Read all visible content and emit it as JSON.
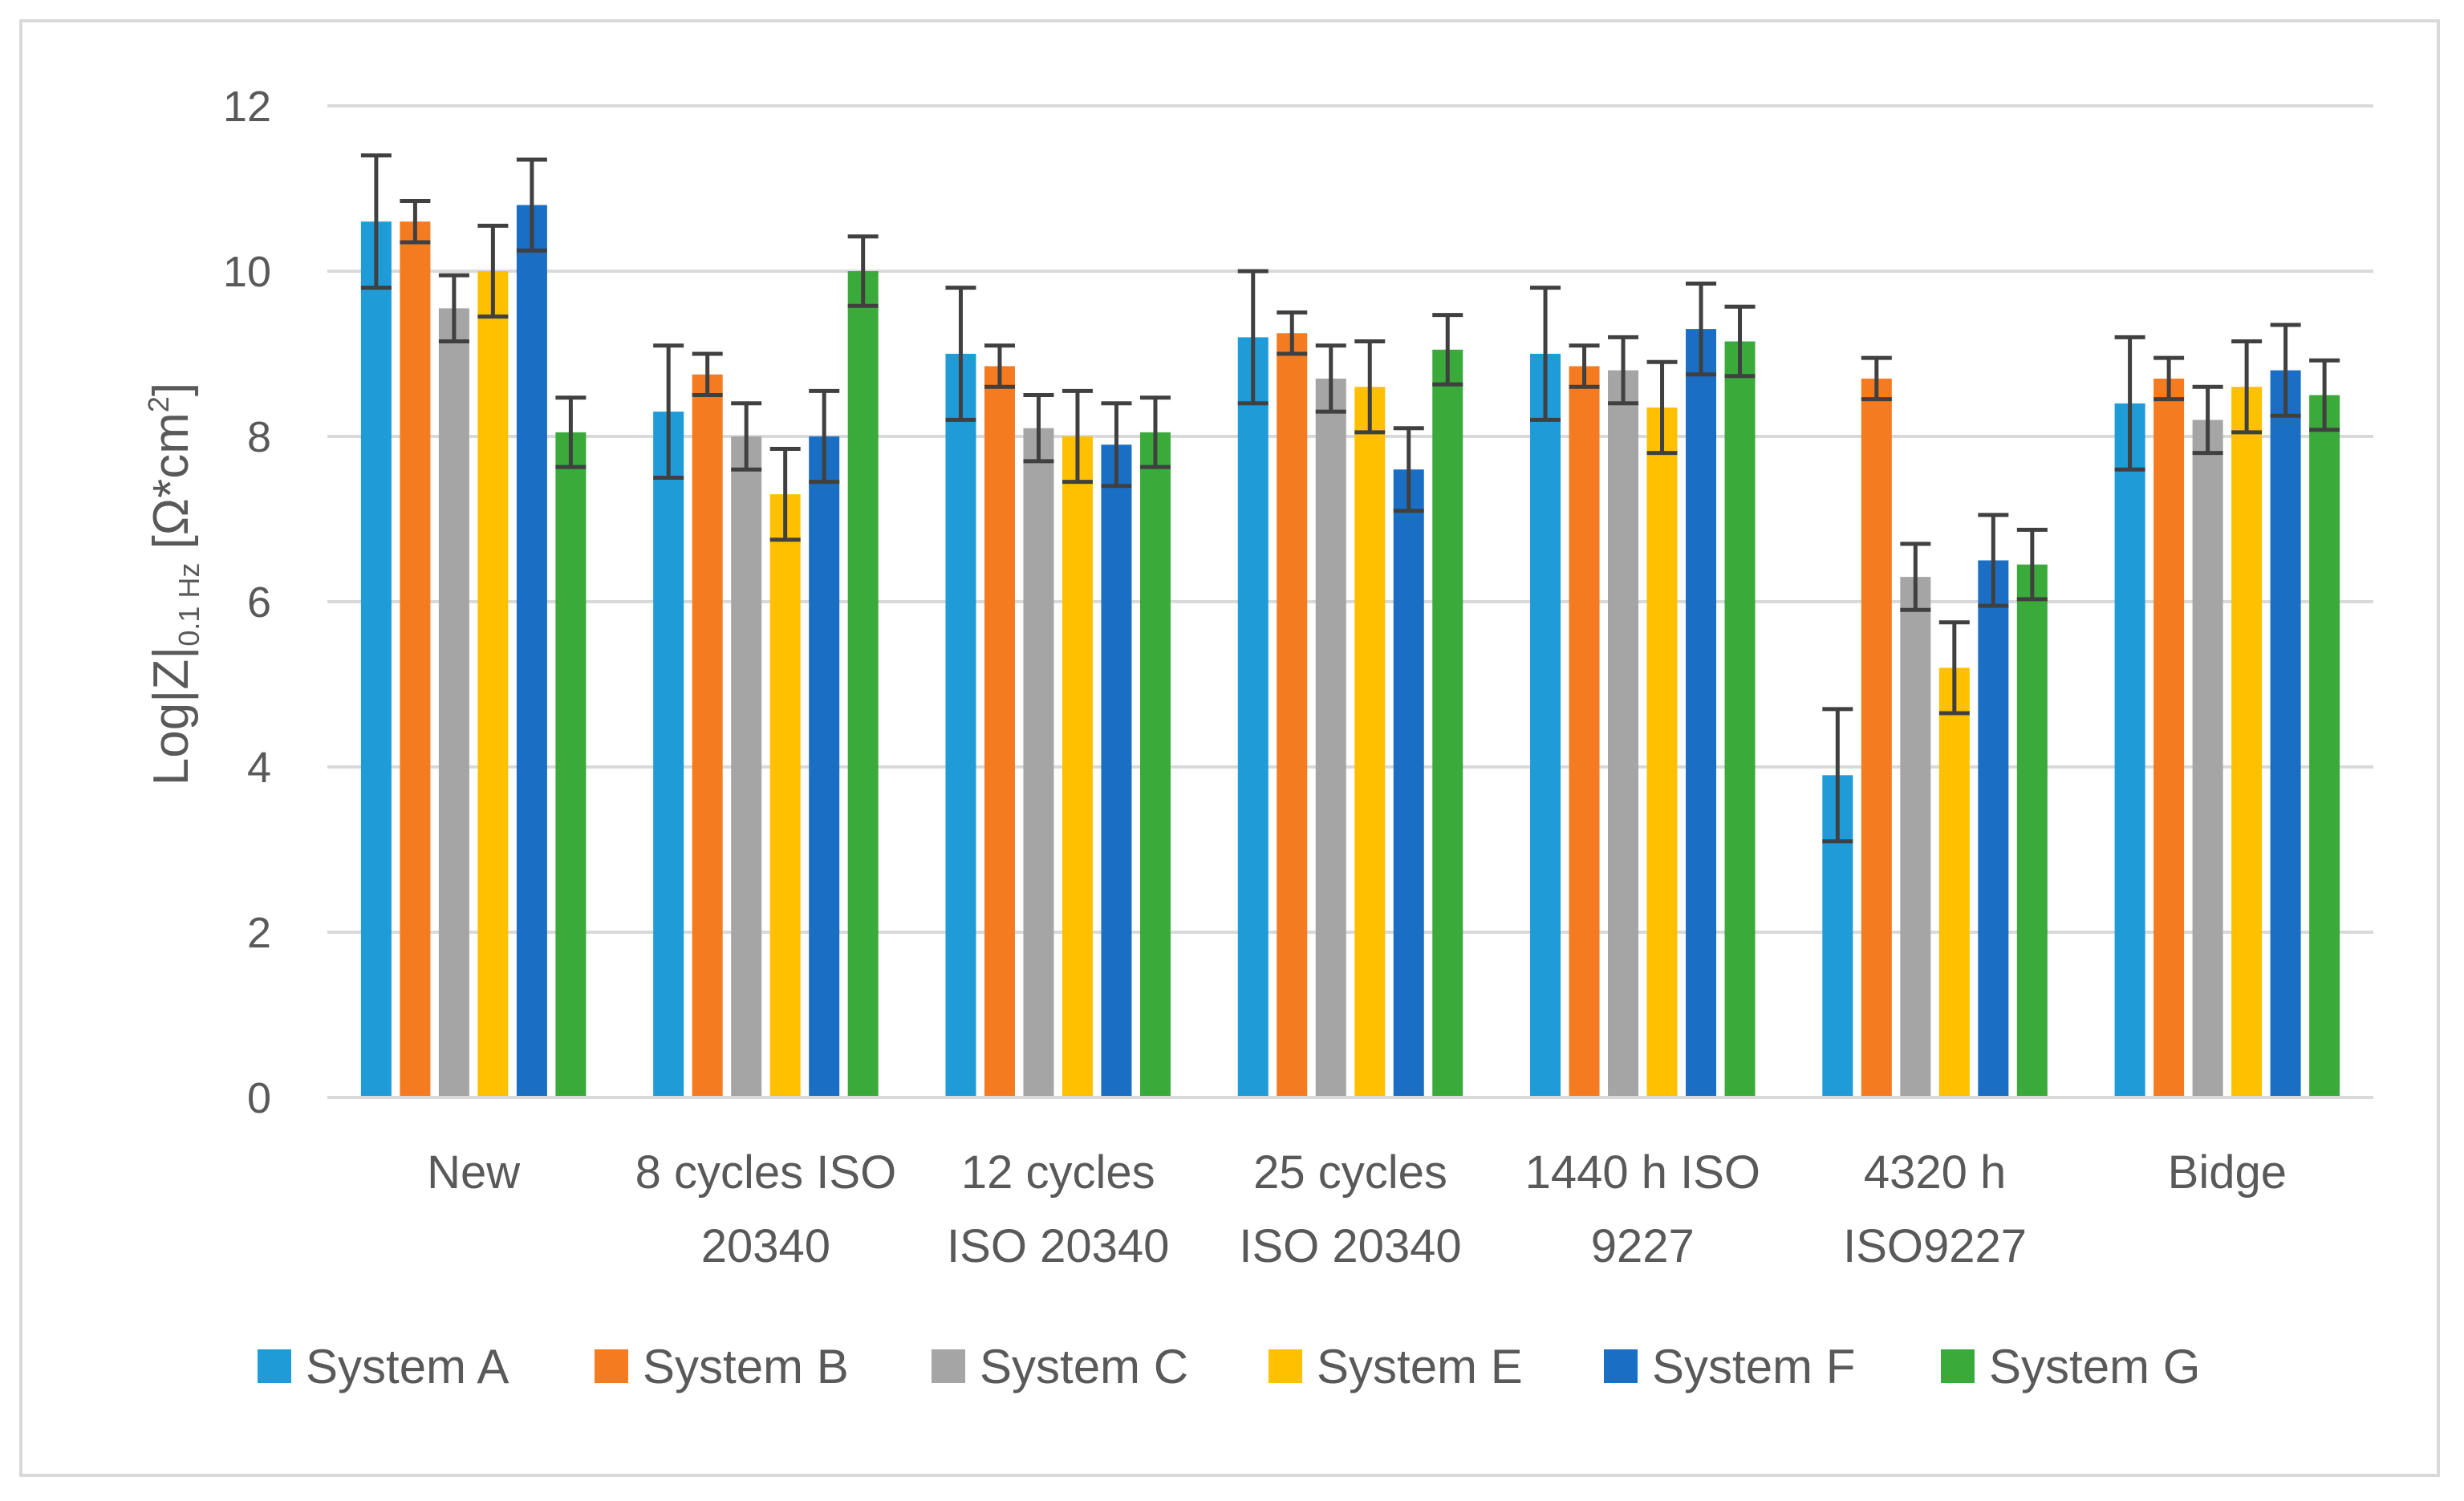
{
  "chart_data": {
    "type": "bar",
    "title": "",
    "ylabel": {
      "main": "Log|Z|",
      "sub": "0.1 Hz",
      "unit_pre": " [Ω*cm",
      "unit_sup": "2",
      "unit_post": "]"
    },
    "ylim": [
      0,
      12
    ],
    "yticks": [
      "0",
      "2",
      "4",
      "6",
      "8",
      "10",
      "12"
    ],
    "grid": true,
    "legend_position": "bottom",
    "categories": [
      [
        "New"
      ],
      [
        "8 cycles ISO",
        "20340"
      ],
      [
        "12 cycles",
        "ISO 20340"
      ],
      [
        "25 cycles",
        "ISO 20340"
      ],
      [
        "1440 h ISO",
        "9227"
      ],
      [
        "4320 h",
        "ISO9227"
      ],
      [
        "Bidge"
      ]
    ],
    "series": [
      {
        "name": "System A",
        "color": "#1f9bd7",
        "values": [
          10.6,
          8.3,
          9.0,
          9.2,
          9.0,
          3.9,
          8.4
        ],
        "errors": [
          0.8,
          0.8,
          0.8,
          0.8,
          0.8,
          0.8,
          0.8
        ]
      },
      {
        "name": "System B",
        "color": "#f47b20",
        "values": [
          10.6,
          8.75,
          8.85,
          9.25,
          8.85,
          8.7,
          8.7
        ],
        "errors": [
          0.25,
          0.25,
          0.25,
          0.25,
          0.25,
          0.25,
          0.25
        ]
      },
      {
        "name": "System C",
        "color": "#a5a5a5",
        "values": [
          9.55,
          8.0,
          8.1,
          8.7,
          8.8,
          6.3,
          8.2
        ],
        "errors": [
          0.4,
          0.4,
          0.4,
          0.4,
          0.4,
          0.4,
          0.4
        ]
      },
      {
        "name": "System E",
        "color": "#ffc000",
        "values": [
          10.0,
          7.3,
          8.0,
          8.6,
          8.35,
          5.2,
          8.6
        ],
        "errors": [
          0.55,
          0.55,
          0.55,
          0.55,
          0.55,
          0.55,
          0.55
        ]
      },
      {
        "name": "System F",
        "color": "#1a6fc4",
        "values": [
          10.8,
          8.0,
          7.9,
          7.6,
          9.3,
          6.5,
          8.8
        ],
        "errors": [
          0.55,
          0.55,
          0.5,
          0.5,
          0.55,
          0.55,
          0.55
        ]
      },
      {
        "name": "System G",
        "color": "#3aaa3a",
        "values": [
          8.05,
          10.0,
          8.05,
          9.05,
          9.15,
          6.45,
          8.5
        ],
        "errors": [
          0.42,
          0.42,
          0.42,
          0.42,
          0.42,
          0.42,
          0.42
        ]
      }
    ]
  }
}
